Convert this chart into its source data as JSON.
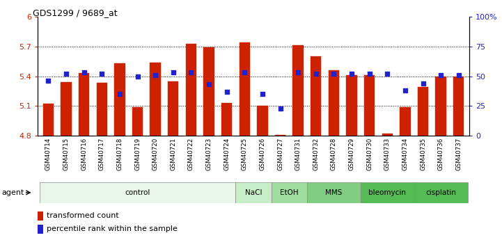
{
  "title": "GDS1299 / 9689_at",
  "samples": [
    "GSM40714",
    "GSM40715",
    "GSM40716",
    "GSM40717",
    "GSM40718",
    "GSM40719",
    "GSM40720",
    "GSM40721",
    "GSM40722",
    "GSM40723",
    "GSM40724",
    "GSM40725",
    "GSM40726",
    "GSM40727",
    "GSM40731",
    "GSM40732",
    "GSM40728",
    "GSM40729",
    "GSM40730",
    "GSM40733",
    "GSM40734",
    "GSM40735",
    "GSM40736",
    "GSM40737"
  ],
  "bar_values": [
    5.12,
    5.34,
    5.43,
    5.33,
    5.53,
    5.09,
    5.54,
    5.35,
    5.73,
    5.69,
    5.13,
    5.74,
    5.1,
    4.81,
    5.71,
    5.6,
    5.46,
    5.41,
    5.41,
    4.82,
    5.09,
    5.29,
    5.4,
    5.4
  ],
  "percentile_values": [
    46,
    52,
    53,
    52,
    35,
    50,
    51,
    53,
    53,
    43,
    37,
    53,
    35,
    23,
    53,
    52,
    52,
    52,
    52,
    52,
    38,
    44,
    51,
    51
  ],
  "ymin": 4.8,
  "ymax": 6.0,
  "yticks": [
    4.8,
    5.1,
    5.4,
    5.7,
    6.0
  ],
  "ytick_labels": [
    "4.8",
    "5.1",
    "5.4",
    "5.7",
    "6"
  ],
  "right_yticks": [
    0,
    25,
    50,
    75,
    100
  ],
  "right_ytick_labels": [
    "0",
    "25",
    "50",
    "75",
    "100%"
  ],
  "bar_color": "#cc2200",
  "dot_color": "#2222cc",
  "groups": [
    {
      "label": "control",
      "start": 0,
      "end": 11,
      "color": "#e8f5e8"
    },
    {
      "label": "NaCl",
      "start": 11,
      "end": 13,
      "color": "#c8eec8"
    },
    {
      "label": "EtOH",
      "start": 13,
      "end": 15,
      "color": "#a0dda0"
    },
    {
      "label": "MMS",
      "start": 15,
      "end": 18,
      "color": "#80cc80"
    },
    {
      "label": "bleomycin",
      "start": 18,
      "end": 21,
      "color": "#55bb55"
    },
    {
      "label": "cisplatin",
      "start": 21,
      "end": 24,
      "color": "#55bb55"
    }
  ],
  "legend_bar_label": "transformed count",
  "legend_dot_label": "percentile rank within the sample"
}
